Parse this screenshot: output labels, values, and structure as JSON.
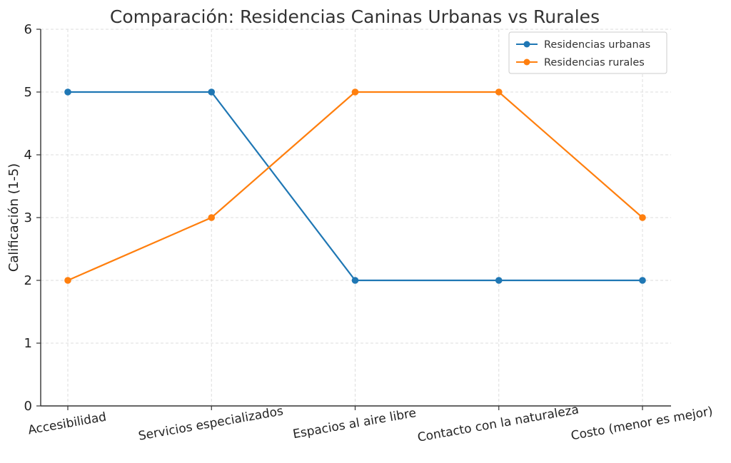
{
  "chart_data": {
    "type": "line",
    "title": "Comparación: Residencias Caninas Urbanas vs Rurales",
    "xlabel": "",
    "ylabel": "Calificación (1-5)",
    "categories": [
      "Accesibilidad",
      "Servicios especializados",
      "Espacios al aire libre",
      "Contacto con la naturaleza",
      "Costo (menor es mejor)"
    ],
    "ylim": [
      0,
      6
    ],
    "yticks": [
      0,
      1,
      2,
      3,
      4,
      5,
      6
    ],
    "grid": true,
    "legend_position": "top-right",
    "series": [
      {
        "name": "Residencias urbanas",
        "values": [
          5,
          5,
          2,
          2,
          2
        ],
        "color": "#1f77b4"
      },
      {
        "name": "Residencias rurales",
        "values": [
          2,
          3,
          5,
          5,
          3
        ],
        "color": "#ff7f0e"
      }
    ]
  }
}
